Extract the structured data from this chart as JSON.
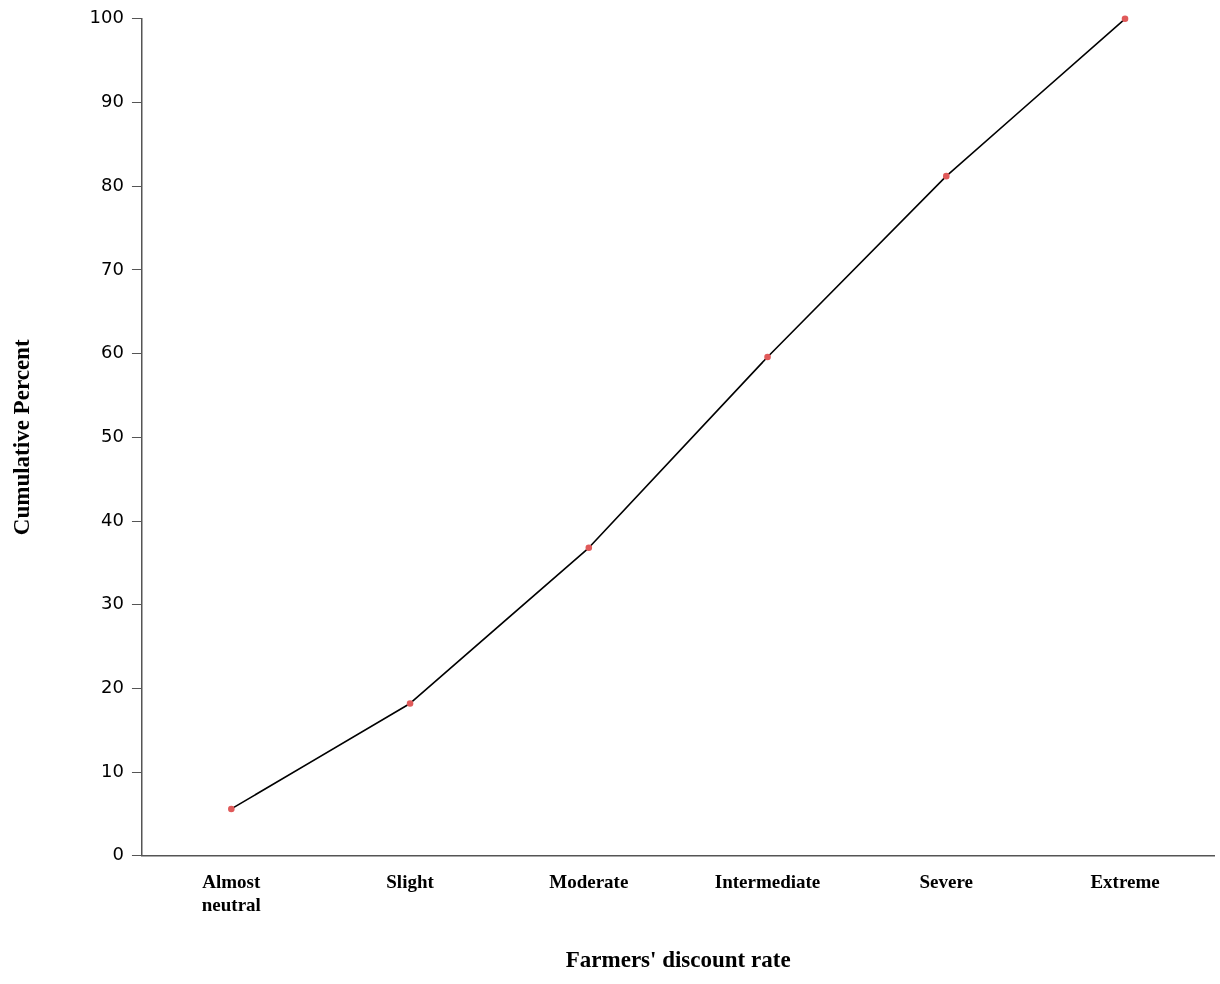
{
  "chart_data": {
    "type": "line",
    "xlabel": "Farmers' discount rate",
    "ylabel": "Cumulative Percent",
    "categories": [
      "Almost neutral",
      "Slight",
      "Moderate",
      "Intermediate",
      "Severe",
      "Extreme"
    ],
    "series": [
      {
        "color": "#000000",
        "colors": [
          "#e05a5a",
          "#e05a5a",
          "#e05a5a",
          "#e05a5a",
          "#e05a5a",
          "#e05a5a"
        ],
        "values": [
          5.6,
          18.2,
          36.8,
          59.6,
          81.2,
          100
        ]
      }
    ],
    "ylim": [
      0,
      100
    ],
    "yticks": [
      0,
      10,
      20,
      30,
      40,
      50,
      60,
      70,
      80,
      90,
      100
    ],
    "grid": false,
    "legend": false,
    "marker": "circle",
    "line_style": "solid"
  }
}
